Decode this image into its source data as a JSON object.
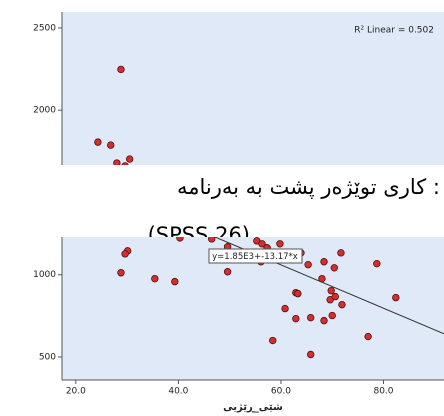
{
  "chart_data": {
    "type": "scatter",
    "x_label": "شێی_ڕێژیی",
    "x": [
      28.8,
      24.3,
      26.8,
      30.5,
      28.0,
      29.6,
      30.1,
      29.6,
      28.8,
      35.4,
      39.3,
      40.3,
      46.5,
      49.6,
      50.0,
      49.6,
      55.3,
      56.3,
      56.1,
      57.3,
      59.8,
      62.0,
      63.9,
      67.6,
      65.3,
      68.4,
      70.4,
      68.0,
      71.7,
      78.7,
      62.9,
      63.3,
      69.8,
      69.6,
      70.6,
      71.9,
      60.8,
      62.9,
      65.8,
      68.4,
      70.0,
      82.4,
      58.4,
      65.8,
      77.0
    ],
    "values": [
      2248,
      1806,
      1788,
      1703,
      1679,
      1661,
      1145,
      1127,
      1012,
      976,
      958,
      1224,
      1218,
      1170,
      1115,
      1018,
      1206,
      1188,
      1079,
      1164,
      1188,
      1321,
      1133,
      1333,
      1061,
      1079,
      1042,
      976,
      1133,
      1067,
      891,
      885,
      903,
      848,
      867,
      818,
      794,
      733,
      739,
      721,
      752,
      861,
      600,
      515,
      624
    ],
    "color": "#d32f2f",
    "xlim": [
      17.3,
      91.8
    ],
    "ylim": [
      360,
      2597
    ],
    "xticks": [
      {
        "value": 20,
        "label": "20.0"
      },
      {
        "value": 40,
        "label": "40.0"
      },
      {
        "value": 60,
        "label": "60.0"
      },
      {
        "value": 80,
        "label": "80.0"
      }
    ],
    "yticks": [
      500,
      1000,
      1500,
      2000,
      2500
    ],
    "fit": {
      "intercept": 1850,
      "slope": -13.17,
      "label": "y=1.85E3+-13.17*x",
      "r2_label": "R² Linear = 0.502"
    }
  },
  "overlay": {
    "line1": ": کاری توێژەر پشت بە بەرنامە",
    "line2": "(SPSS 26)"
  }
}
